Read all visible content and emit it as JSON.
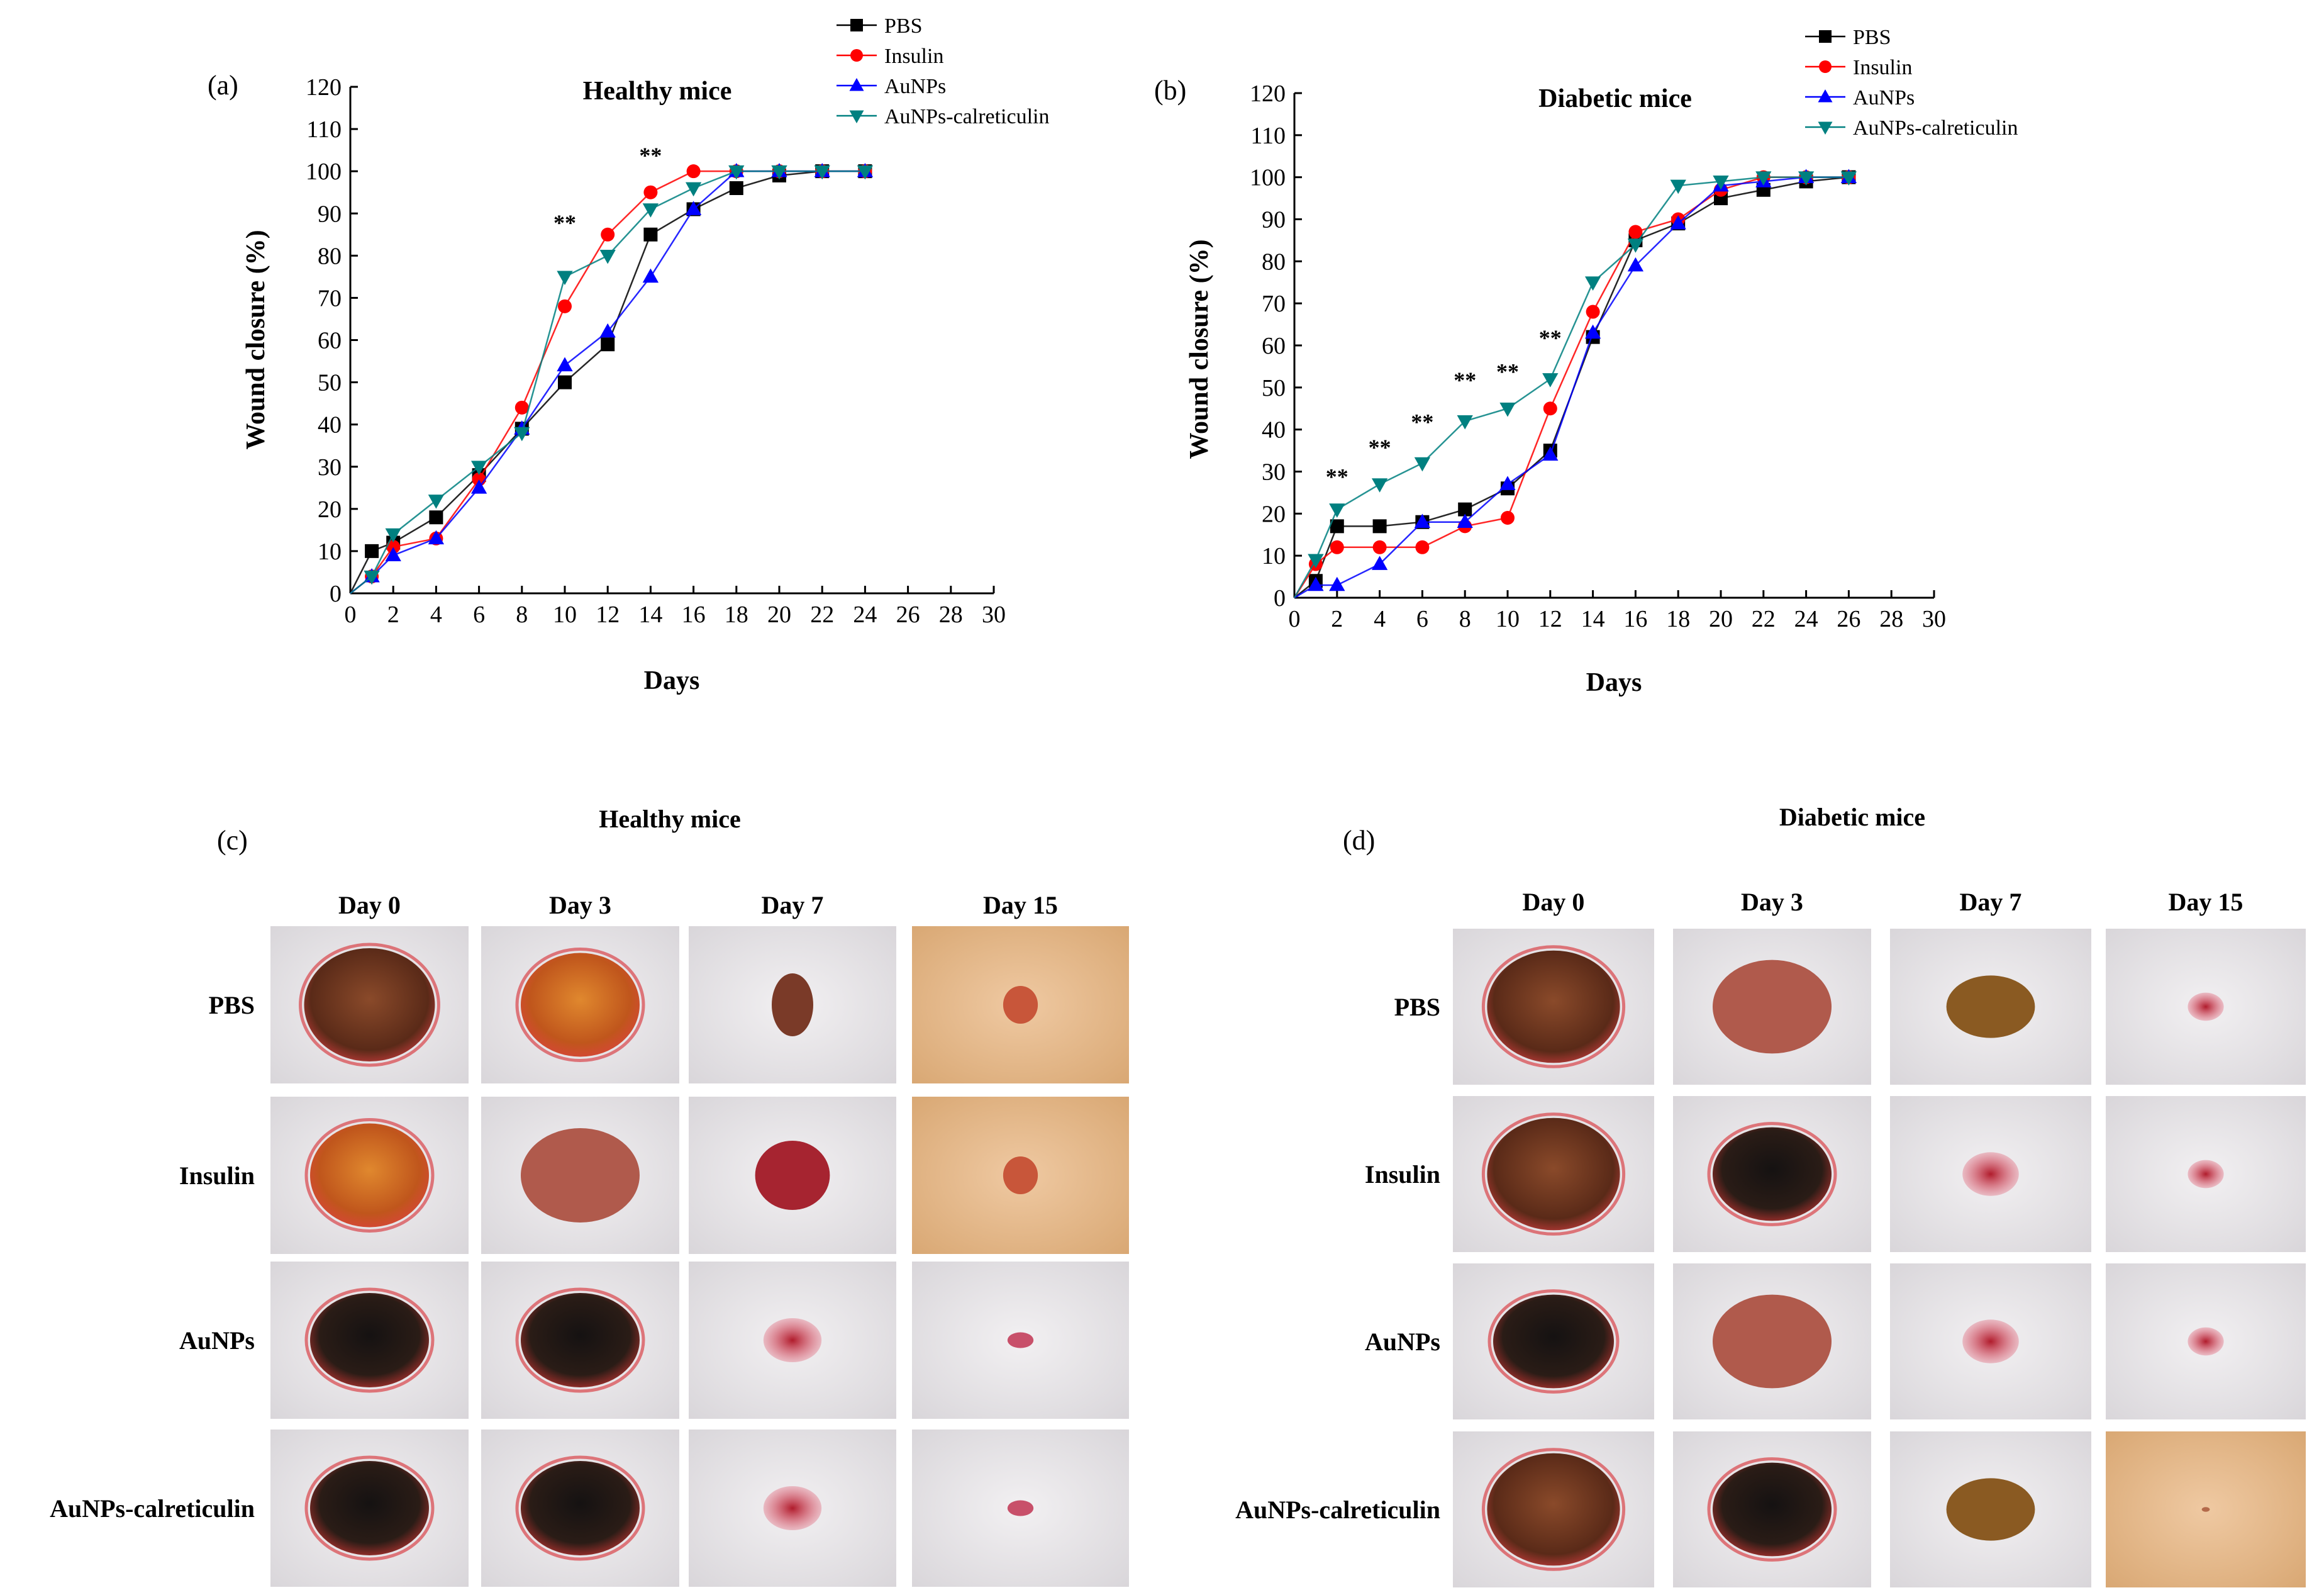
{
  "chart_data": [
    {
      "type": "line",
      "panel_label": "(a)",
      "title": "Healthy mice",
      "xlabel": "Days",
      "ylabel": "Wound closure (%)",
      "xlim": [
        0,
        30
      ],
      "ylim": [
        0,
        120
      ],
      "xticks": [
        "0",
        "2",
        "4",
        "6",
        "8",
        "10",
        "12",
        "14",
        "16",
        "18",
        "20",
        "22",
        "24",
        "26",
        "28",
        "30"
      ],
      "yticks": [
        "0",
        "10",
        "20",
        "30",
        "40",
        "50",
        "60",
        "70",
        "80",
        "90",
        "100",
        "110",
        "120"
      ],
      "legend_position": "top-right",
      "series": [
        {
          "name": "PBS",
          "color": "#000000",
          "marker": "square",
          "x": [
            0,
            1,
            2,
            4,
            6,
            8,
            10,
            12,
            14,
            16,
            18,
            20,
            22,
            24
          ],
          "y": [
            0,
            10,
            12,
            18,
            28,
            39,
            50,
            59,
            85,
            91,
            96,
            99,
            100,
            100
          ]
        },
        {
          "name": "Insulin",
          "color": "#ff0000",
          "marker": "circle",
          "x": [
            0,
            1,
            2,
            4,
            6,
            8,
            10,
            12,
            14,
            16,
            18,
            20,
            22,
            24
          ],
          "y": [
            0,
            4,
            11,
            13,
            27,
            44,
            68,
            85,
            95,
            100,
            100,
            100,
            100,
            100
          ]
        },
        {
          "name": "AuNPs",
          "color": "#0000ff",
          "marker": "triangle-up",
          "x": [
            0,
            1,
            2,
            4,
            6,
            8,
            10,
            12,
            14,
            16,
            18,
            20,
            22,
            24
          ],
          "y": [
            0,
            4,
            9,
            13,
            25,
            39,
            54,
            62,
            75,
            91,
            100,
            100,
            100,
            100
          ]
        },
        {
          "name": "AuNPs-calreticulin",
          "color": "#008080",
          "marker": "triangle-down",
          "x": [
            0,
            1,
            2,
            4,
            6,
            8,
            10,
            12,
            14,
            16,
            18,
            20,
            22,
            24
          ],
          "y": [
            0,
            4,
            14,
            22,
            30,
            38,
            75,
            80,
            91,
            96,
            100,
            100,
            100,
            100
          ]
        }
      ],
      "annotations": [
        {
          "x": 10,
          "y": 86,
          "text": "**"
        },
        {
          "x": 14,
          "y": 102,
          "text": "**"
        }
      ]
    },
    {
      "type": "line",
      "panel_label": "(b)",
      "title": "Diabetic mice",
      "xlabel": "Days",
      "ylabel": "Wound closure (%)",
      "xlim": [
        0,
        30
      ],
      "ylim": [
        0,
        120
      ],
      "xticks": [
        "0",
        "2",
        "4",
        "6",
        "8",
        "10",
        "12",
        "14",
        "16",
        "18",
        "20",
        "22",
        "24",
        "26",
        "28",
        "30"
      ],
      "yticks": [
        "0",
        "10",
        "20",
        "30",
        "40",
        "50",
        "60",
        "70",
        "80",
        "90",
        "100",
        "110",
        "120"
      ],
      "legend_position": "top-right",
      "series": [
        {
          "name": "PBS",
          "color": "#000000",
          "marker": "square",
          "x": [
            0,
            1,
            2,
            4,
            6,
            8,
            10,
            12,
            14,
            16,
            18,
            20,
            22,
            24,
            26
          ],
          "y": [
            0,
            4,
            17,
            17,
            18,
            21,
            26,
            35,
            62,
            85,
            89,
            95,
            97,
            99,
            100
          ]
        },
        {
          "name": "Insulin",
          "color": "#ff0000",
          "marker": "circle",
          "x": [
            0,
            1,
            2,
            4,
            6,
            8,
            10,
            12,
            14,
            16,
            18,
            20,
            22,
            24,
            26
          ],
          "y": [
            0,
            8,
            12,
            12,
            12,
            17,
            19,
            45,
            68,
            87,
            90,
            97,
            100,
            100,
            100
          ]
        },
        {
          "name": "AuNPs",
          "color": "#0000ff",
          "marker": "triangle-up",
          "x": [
            0,
            1,
            2,
            4,
            6,
            8,
            10,
            12,
            14,
            16,
            18,
            20,
            22,
            24,
            26
          ],
          "y": [
            0,
            3,
            3,
            8,
            18,
            18,
            27,
            34,
            63,
            79,
            89,
            98,
            99,
            100,
            100
          ]
        },
        {
          "name": "AuNPs-calreticulin",
          "color": "#008080",
          "marker": "triangle-down",
          "x": [
            0,
            1,
            2,
            4,
            6,
            8,
            10,
            12,
            14,
            16,
            18,
            20,
            22,
            24,
            26
          ],
          "y": [
            0,
            9,
            21,
            27,
            32,
            42,
            45,
            52,
            75,
            84,
            98,
            99,
            100,
            100,
            100
          ]
        }
      ],
      "annotations": [
        {
          "x": 2,
          "y": 27,
          "text": "**"
        },
        {
          "x": 4,
          "y": 34,
          "text": "**"
        },
        {
          "x": 6,
          "y": 40,
          "text": "**"
        },
        {
          "x": 8,
          "y": 50,
          "text": "**"
        },
        {
          "x": 10,
          "y": 52,
          "text": "**"
        },
        {
          "x": 12,
          "y": 60,
          "text": "**"
        }
      ]
    }
  ],
  "photo_panels": [
    {
      "panel_label": "(c)",
      "title": "Healthy mice",
      "days": [
        "Day 0",
        "Day 3",
        "Day 7",
        "Day 15"
      ],
      "treatments": [
        "PBS",
        "Insulin",
        "AuNPs",
        "AuNPs-calreticulin"
      ]
    },
    {
      "panel_label": "(d)",
      "title": "Diabetic mice",
      "days": [
        "Day 0",
        "Day 3",
        "Day 7",
        "Day 15"
      ],
      "treatments": [
        "PBS",
        "Insulin",
        "AuNPs",
        "AuNPs-calreticulin"
      ]
    }
  ]
}
